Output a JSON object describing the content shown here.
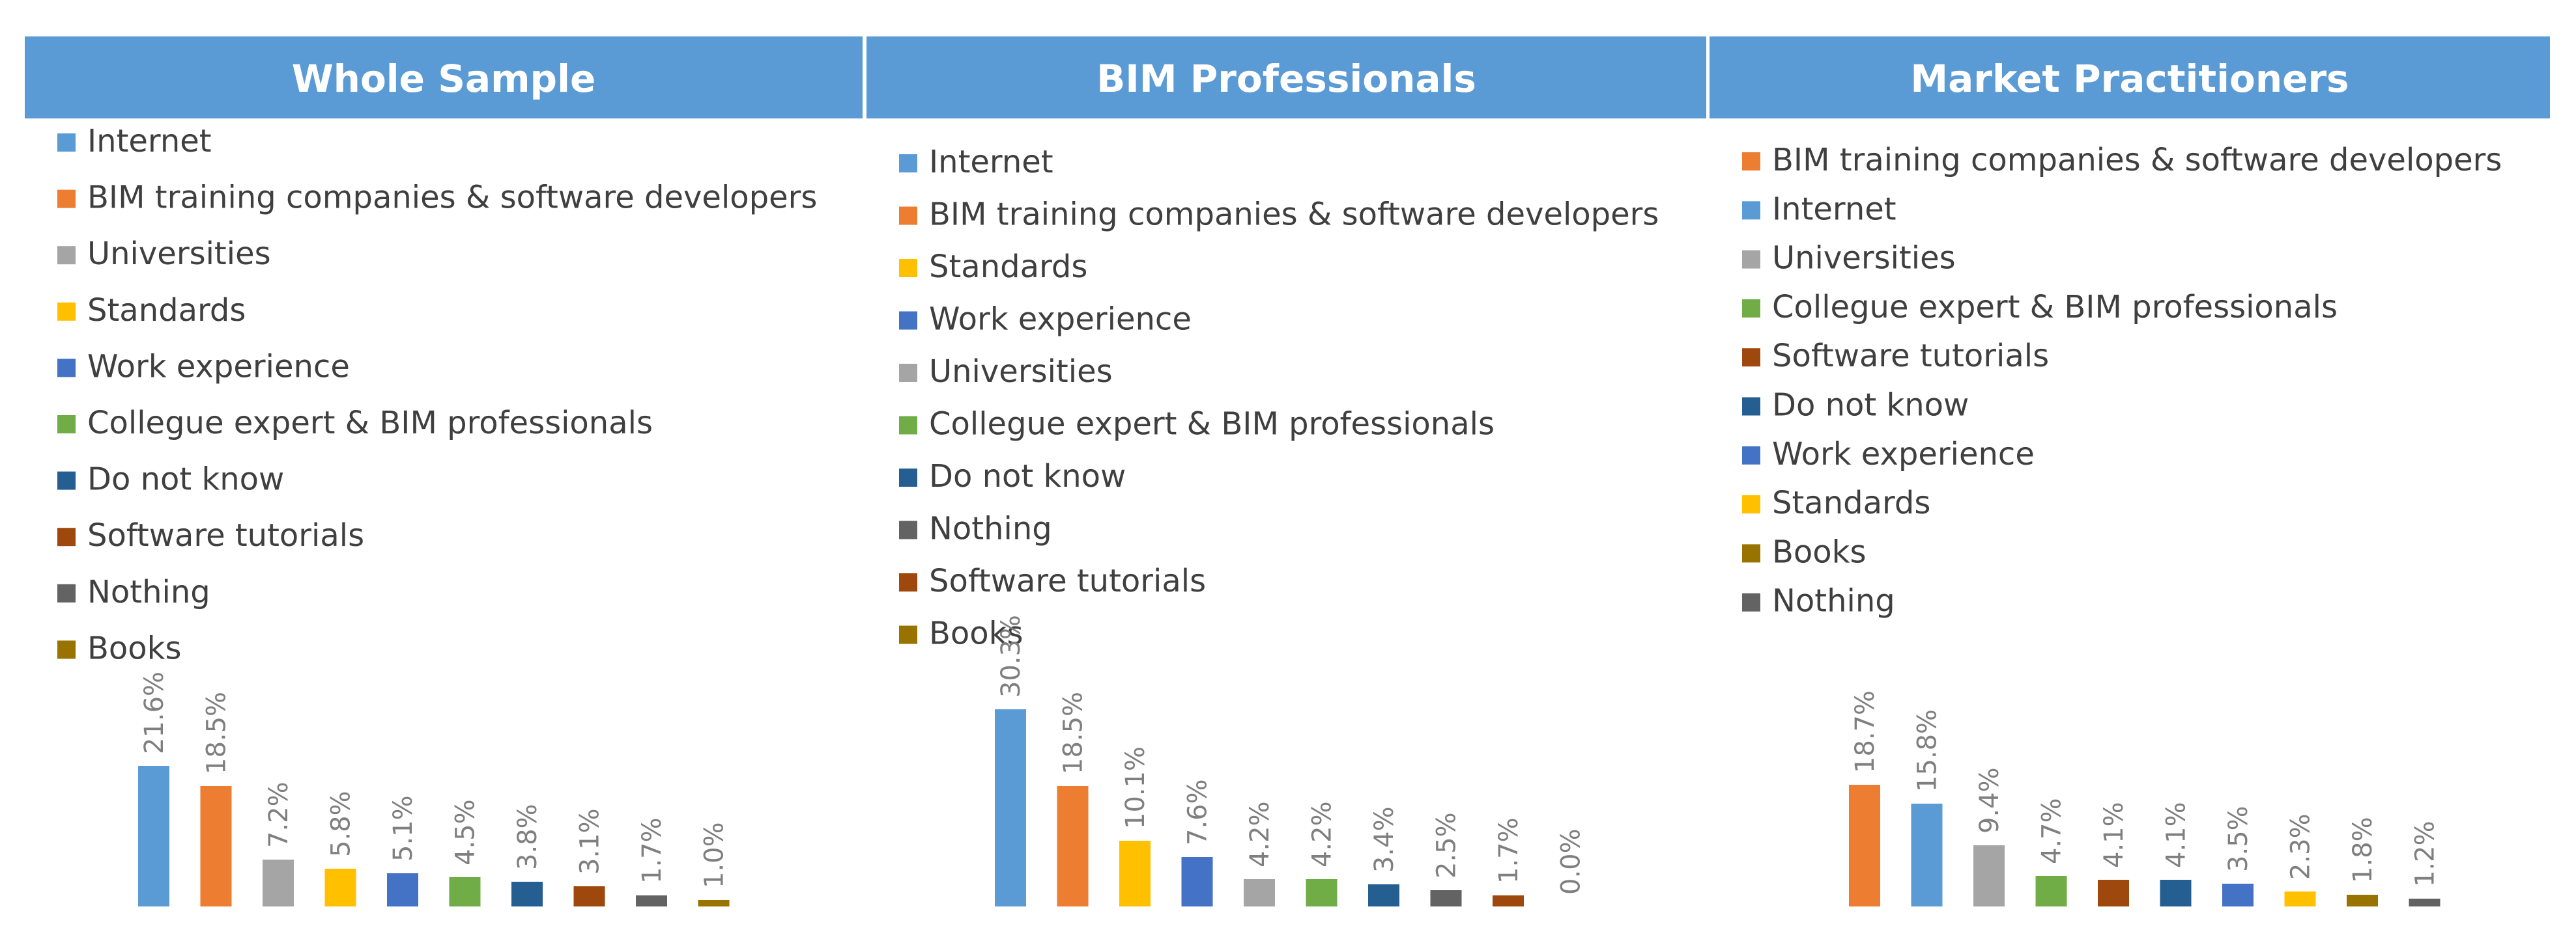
{
  "colors": {
    "header_bg": "#5b9bd5",
    "Internet": "#5b9bd5",
    "BIM training companies & software developers": "#ed7d31",
    "Universities": "#a5a5a5",
    "Standards": "#ffc000",
    "Work experience": "#4472c4",
    "Collegue expert & BIM professionals": "#70ad47",
    "Do not know": "#255e91",
    "Software tutorials": "#9e480e",
    "Nothing": "#636363",
    "Books": "#997300"
  },
  "chart_data": [
    {
      "type": "bar",
      "title": "Whole Sample",
      "categories": [
        "Internet",
        "BIM training companies & software developers",
        "Universities",
        "Standards",
        "Work experience",
        "Collegue expert & BIM professionals",
        "Do not know",
        "Software tutorials",
        "Nothing",
        "Books"
      ],
      "values": [
        21.6,
        18.5,
        7.2,
        5.8,
        5.1,
        4.5,
        3.8,
        3.1,
        1.7,
        1.0
      ],
      "labels": [
        "21.6%",
        "18.5%",
        "7.2%",
        "5.8%",
        "5.1%",
        "4.5%",
        "3.8%",
        "3.1%",
        "1.7%",
        "1.0%"
      ],
      "legend": "top",
      "grid": false
    },
    {
      "type": "bar",
      "title": "BIM Professionals",
      "categories": [
        "Internet",
        "BIM training companies & software developers",
        "Standards",
        "Work experience",
        "Universities",
        "Collegue expert & BIM professionals",
        "Do not know",
        "Nothing",
        "Software tutorials",
        "Books"
      ],
      "values": [
        30.3,
        18.5,
        10.1,
        7.6,
        4.2,
        4.2,
        3.4,
        2.5,
        1.7,
        0.0
      ],
      "labels": [
        "30.3%",
        "18.5%",
        "10.1%",
        "7.6%",
        "4.2%",
        "4.2%",
        "3.4%",
        "2.5%",
        "1.7%",
        "0.0%"
      ],
      "legend": "top",
      "grid": false
    },
    {
      "type": "bar",
      "title": "Market Practitioners",
      "categories": [
        "BIM training companies & software developers",
        "Internet",
        "Universities",
        "Collegue expert & BIM professionals",
        "Software tutorials",
        "Do not know",
        "Work experience",
        "Standards",
        "Books",
        "Nothing"
      ],
      "values": [
        18.7,
        15.8,
        9.4,
        4.7,
        4.1,
        4.1,
        3.5,
        2.3,
        1.8,
        1.2
      ],
      "labels": [
        "18.7%",
        "15.8%",
        "9.4%",
        "4.7%",
        "4.1%",
        "4.1%",
        "3.5%",
        "2.3%",
        "1.8%",
        "1.2%"
      ],
      "legend": "top",
      "grid": false
    }
  ]
}
